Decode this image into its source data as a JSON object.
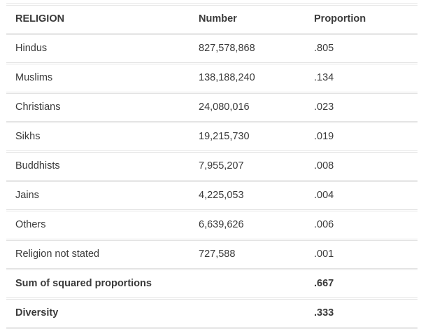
{
  "table": {
    "headers": [
      "RELIGION",
      "Number",
      "Proportion"
    ],
    "rows": [
      {
        "religion": "Hindus",
        "number": "827,578,868",
        "proportion": ".805"
      },
      {
        "religion": "Muslims",
        "number": "138,188,240",
        "proportion": ".134"
      },
      {
        "religion": "Christians",
        "number": "24,080,016",
        "proportion": ".023"
      },
      {
        "religion": "Sikhs",
        "number": "19,215,730",
        "proportion": ".019"
      },
      {
        "religion": "Buddhists",
        "number": "7,955,207",
        "proportion": ".008"
      },
      {
        "religion": "Jains",
        "number": "4,225,053",
        "proportion": ".004"
      },
      {
        "religion": "Others",
        "number": "6,639,626",
        "proportion": ".006"
      },
      {
        "religion": "Religion not stated",
        "number": "727,588",
        "proportion": ".001"
      }
    ],
    "summary": [
      {
        "label": "Sum of squared proportions",
        "number": "",
        "proportion": ".667"
      },
      {
        "label": "Diversity",
        "number": "",
        "proportion": ".333"
      }
    ]
  }
}
